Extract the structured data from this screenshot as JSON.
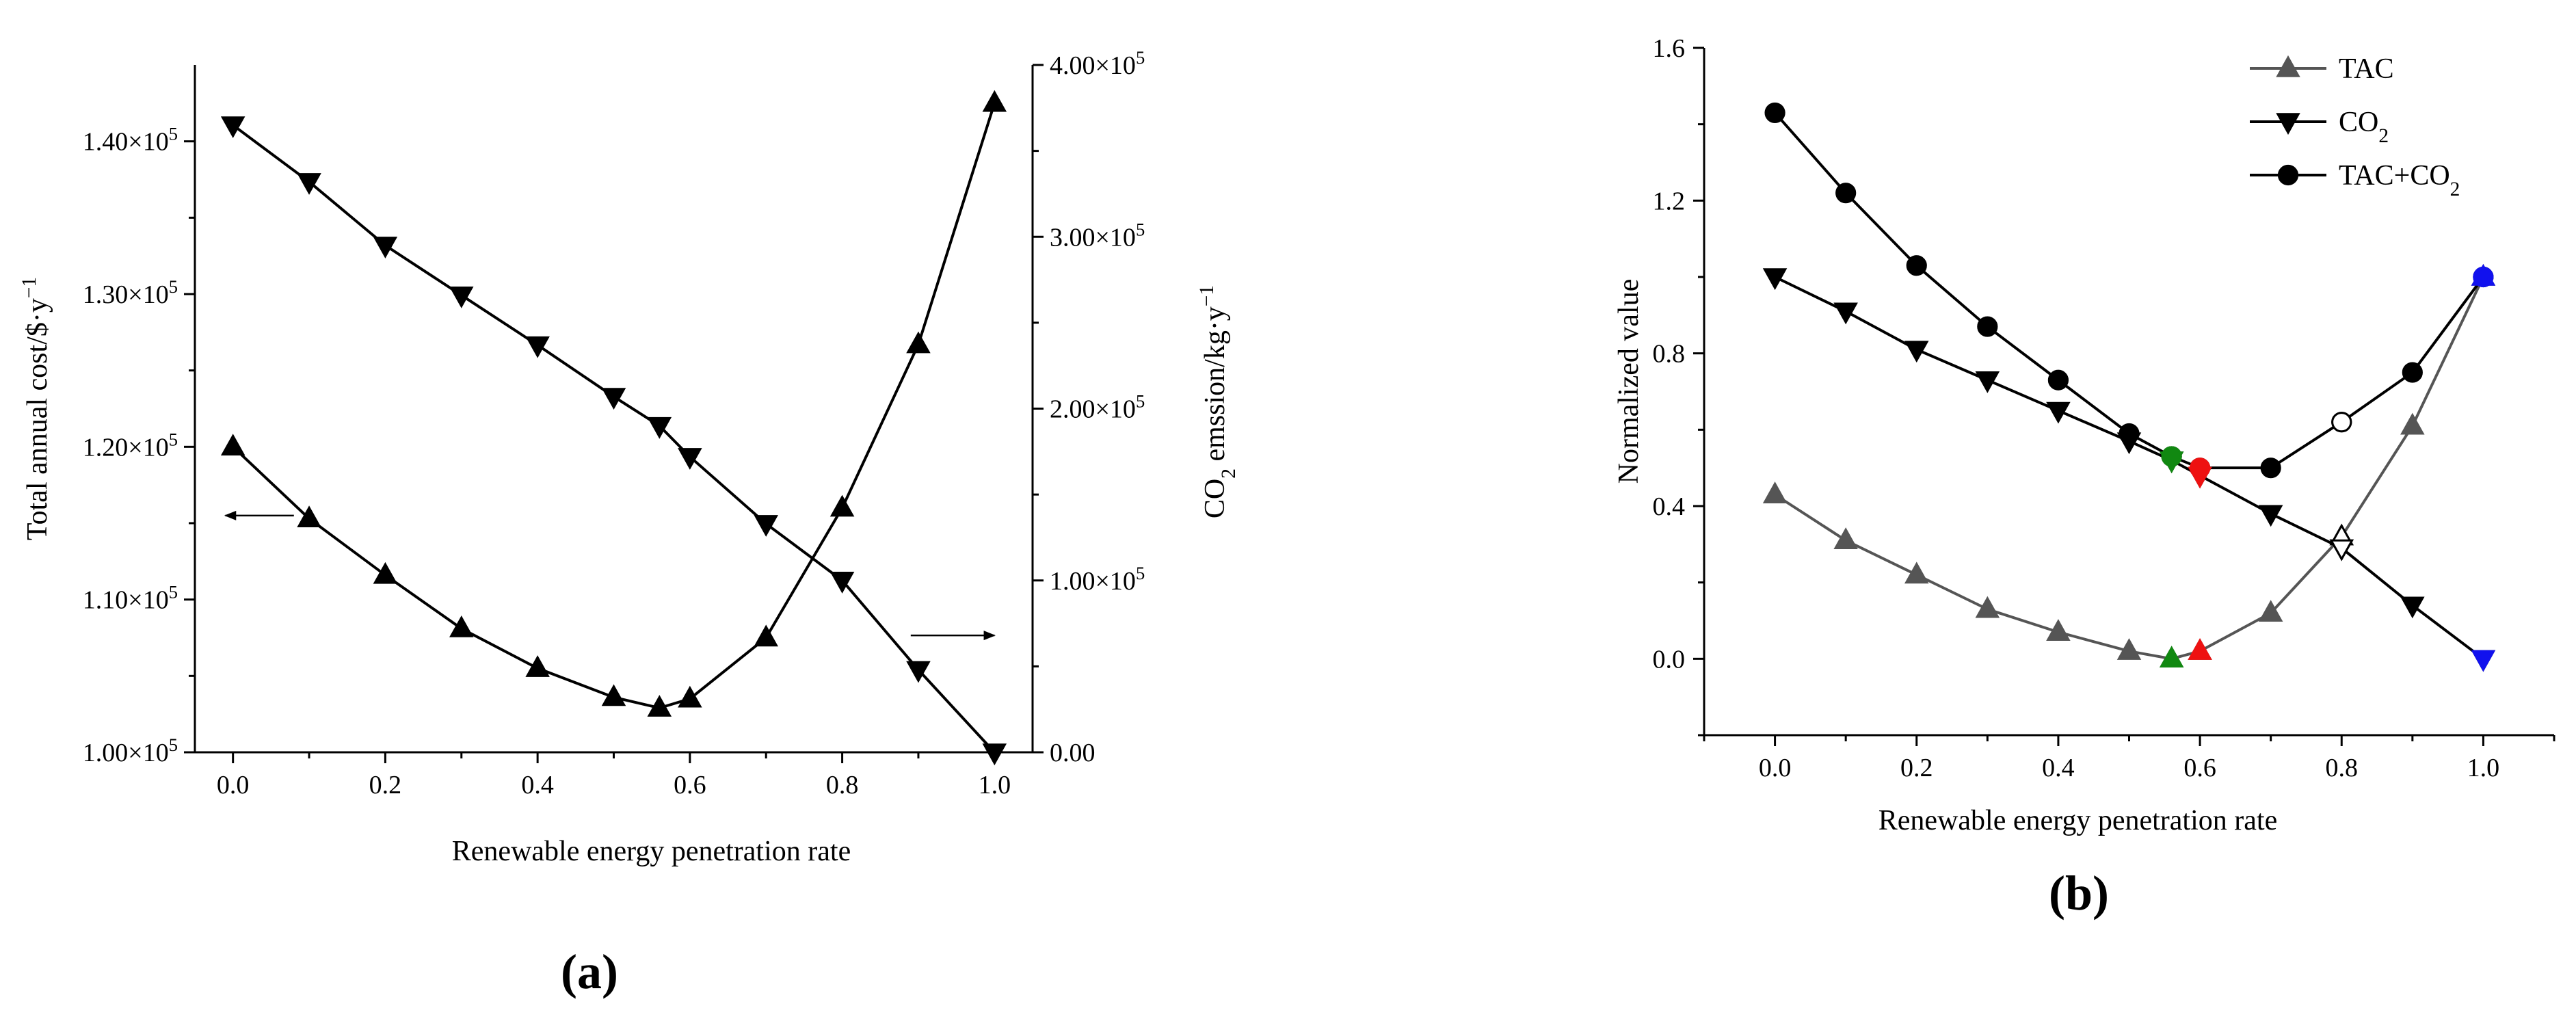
{
  "chart_data": [
    {
      "type": "line",
      "panel_label": "(a)",
      "xlabel": "Renewable energy penetration rate",
      "ylabel_left": "Total annual cost/$·y",
      "ylabel_left_sup": "−1",
      "ylabel_right_pre": "CO",
      "ylabel_right_sub": "2",
      "ylabel_right_post": " emssion/kg·y",
      "ylabel_right_sup": "−1",
      "xlim": [
        -0.05,
        1.05
      ],
      "ylim_left": [
        100000,
        145000
      ],
      "ylim_right": [
        0,
        400000
      ],
      "xticks": [
        0.0,
        0.2,
        0.4,
        0.6,
        0.8,
        1.0
      ],
      "xtick_labels": [
        "0.0",
        "0.2",
        "0.4",
        "0.6",
        "0.8",
        "1.0"
      ],
      "yticks_left": [
        100000,
        110000,
        120000,
        130000,
        140000
      ],
      "ytick_labels_left": [
        {
          "base": "1.00×10",
          "exp": "5"
        },
        {
          "base": "1.10×10",
          "exp": "5"
        },
        {
          "base": "1.20×10",
          "exp": "5"
        },
        {
          "base": "1.30×10",
          "exp": "5"
        },
        {
          "base": "1.40×10",
          "exp": "5"
        }
      ],
      "yticks_right": [
        0,
        100000,
        200000,
        300000,
        400000
      ],
      "ytick_labels_right": [
        {
          "base": "0.00",
          "exp": ""
        },
        {
          "base": "1.00×10",
          "exp": "5"
        },
        {
          "base": "2.00×10",
          "exp": "5"
        },
        {
          "base": "3.00×10",
          "exp": "5"
        },
        {
          "base": "4.00×10",
          "exp": "5"
        }
      ],
      "series": [
        {
          "axis": "left",
          "marker": "triangle-up",
          "color": "#000000",
          "x": [
            0.0,
            0.1,
            0.2,
            0.3,
            0.4,
            0.5,
            0.56,
            0.6,
            0.7,
            0.8,
            0.9,
            1.0
          ],
          "y": [
            120000,
            115300,
            111600,
            108100,
            105500,
            103600,
            102900,
            103500,
            107500,
            116000,
            126700,
            142500
          ]
        },
        {
          "axis": "right",
          "marker": "triangle-down",
          "color": "#000000",
          "x": [
            0.0,
            0.1,
            0.2,
            0.3,
            0.4,
            0.5,
            0.56,
            0.6,
            0.7,
            0.8,
            0.9,
            1.0
          ],
          "y": [
            365000,
            332000,
            295000,
            266000,
            237000,
            207000,
            190000,
            172000,
            133000,
            100000,
            48000,
            0
          ]
        }
      ],
      "annotations": [
        {
          "type": "arrow",
          "direction": "left",
          "target_axis": "left"
        },
        {
          "type": "arrow",
          "direction": "right",
          "target_axis": "right"
        }
      ]
    },
    {
      "type": "line",
      "panel_label": "(b)",
      "xlabel": "Renewable energy penetration rate",
      "ylabel": "Normalized value",
      "xlim": [
        -0.1,
        1.1
      ],
      "ylim": [
        -0.2,
        1.6
      ],
      "xticks": [
        0.0,
        0.2,
        0.4,
        0.6,
        0.8,
        1.0
      ],
      "xtick_labels": [
        "0.0",
        "0.2",
        "0.4",
        "0.6",
        "0.8",
        "1.0"
      ],
      "yticks": [
        0.0,
        0.4,
        0.8,
        1.2,
        1.6
      ],
      "ytick_labels": [
        "0.0",
        "0.4",
        "0.8",
        "1.2",
        "1.6"
      ],
      "legend_position": "top-right",
      "series": [
        {
          "name": "TAC",
          "legend_parts": [
            "TAC",
            "",
            ""
          ],
          "marker": "triangle-up",
          "color": "#555555",
          "x": [
            0.0,
            0.1,
            0.2,
            0.3,
            0.4,
            0.5,
            0.56,
            0.6,
            0.7,
            0.8,
            0.9,
            1.0
          ],
          "y": [
            0.43,
            0.31,
            0.22,
            0.13,
            0.07,
            0.02,
            0.0,
            0.02,
            0.12,
            0.32,
            0.61,
            1.0
          ]
        },
        {
          "name": "CO2",
          "legend_parts": [
            "CO",
            "2",
            ""
          ],
          "marker": "triangle-down",
          "color": "#000000",
          "x": [
            0.0,
            0.1,
            0.2,
            0.3,
            0.4,
            0.5,
            0.56,
            0.6,
            0.7,
            0.8,
            0.9,
            1.0
          ],
          "y": [
            1.0,
            0.91,
            0.81,
            0.73,
            0.65,
            0.57,
            0.52,
            0.48,
            0.38,
            0.29,
            0.14,
            0.0
          ]
        },
        {
          "name": "TAC+CO2",
          "legend_parts": [
            "TAC+CO",
            "2",
            ""
          ],
          "marker": "circle",
          "color": "#000000",
          "x": [
            0.0,
            0.1,
            0.2,
            0.3,
            0.4,
            0.5,
            0.56,
            0.6,
            0.7,
            0.8,
            0.9,
            1.0
          ],
          "y": [
            1.43,
            1.22,
            1.03,
            0.87,
            0.73,
            0.59,
            0.53,
            0.5,
            0.5,
            0.62,
            0.75,
            1.0
          ]
        }
      ],
      "highlighted_points": [
        {
          "series": "TAC",
          "x": 0.56,
          "y": 0.0,
          "marker": "triangle-up",
          "color": "#118811"
        },
        {
          "series": "TAC",
          "x": 0.6,
          "y": 0.02,
          "marker": "triangle-up",
          "color": "#ee1111"
        },
        {
          "series": "TAC",
          "x": 0.8,
          "y": 0.32,
          "marker": "triangle-up",
          "color": "#ffffff"
        },
        {
          "series": "TAC",
          "x": 1.0,
          "y": 1.0,
          "marker": "triangle-up",
          "color": "#1111ee"
        },
        {
          "series": "CO2",
          "x": 0.56,
          "y": 0.52,
          "marker": "triangle-down",
          "color": "#118811"
        },
        {
          "series": "CO2",
          "x": 0.6,
          "y": 0.48,
          "marker": "triangle-down",
          "color": "#ee1111"
        },
        {
          "series": "CO2",
          "x": 0.8,
          "y": 0.29,
          "marker": "triangle-down",
          "color": "#ffffff"
        },
        {
          "series": "CO2",
          "x": 1.0,
          "y": 0.0,
          "marker": "triangle-down",
          "color": "#1111ee"
        },
        {
          "series": "TAC+CO2",
          "x": 0.56,
          "y": 0.53,
          "marker": "circle",
          "color": "#118811"
        },
        {
          "series": "TAC+CO2",
          "x": 0.6,
          "y": 0.5,
          "marker": "circle",
          "color": "#ee1111"
        },
        {
          "series": "TAC+CO2",
          "x": 0.8,
          "y": 0.62,
          "marker": "circle",
          "color": "#ffffff"
        },
        {
          "series": "TAC+CO2",
          "x": 1.0,
          "y": 1.0,
          "marker": "circle",
          "color": "#1111ee"
        }
      ]
    }
  ]
}
